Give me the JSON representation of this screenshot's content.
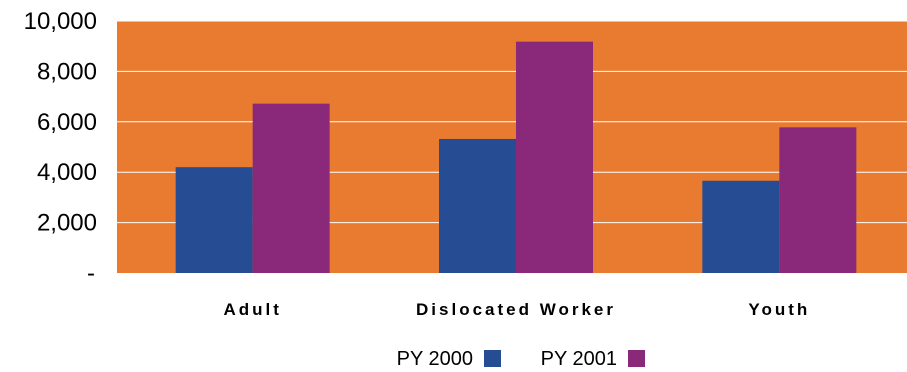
{
  "chart_data": {
    "type": "bar",
    "categories": [
      "Adult",
      "Dislocated Worker",
      "Youth"
    ],
    "series": [
      {
        "name": "PY 2000",
        "color": "#264d94",
        "values": [
          4200,
          5320,
          3660
        ]
      },
      {
        "name": "PY 2001",
        "color": "#8a297a",
        "values": [
          6720,
          9180,
          5780
        ]
      }
    ],
    "ylim": [
      0,
      10000
    ],
    "yticks": [
      {
        "value": 0,
        "label": "-"
      },
      {
        "value": 2000,
        "label": "2,000"
      },
      {
        "value": 4000,
        "label": "4,000"
      },
      {
        "value": 6000,
        "label": "6,000"
      },
      {
        "value": 8000,
        "label": "8,000"
      },
      {
        "value": 10000,
        "label": "10,000"
      }
    ],
    "plot_background": "#e87b30",
    "grid": true,
    "legend_position": "bottom",
    "title": "",
    "xlabel": "",
    "ylabel": ""
  }
}
